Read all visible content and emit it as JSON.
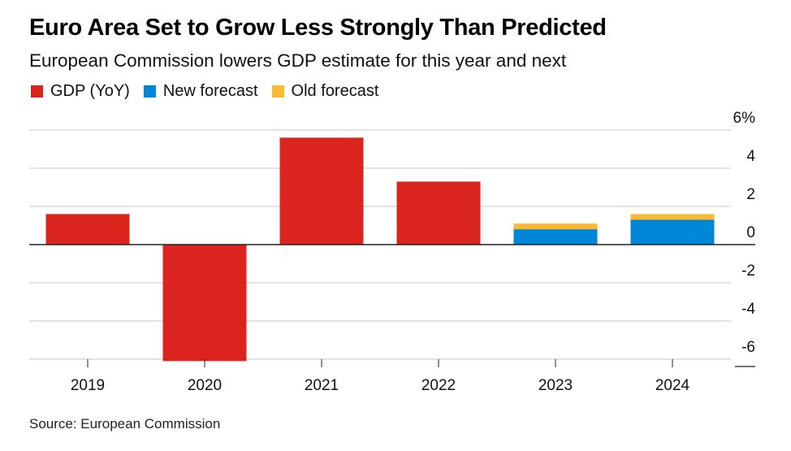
{
  "header": {
    "title": "Euro Area Set to Grow Less Strongly Than Predicted",
    "subtitle": "European Commission lowers GDP estimate for this year and next"
  },
  "legend": [
    {
      "label": "GDP (YoY)",
      "color": "#dc241f"
    },
    {
      "label": "New forecast",
      "color": "#0086d9"
    },
    {
      "label": "Old forecast",
      "color": "#fdba31"
    }
  ],
  "footer": {
    "source": "Source: European Commission"
  },
  "chart_data": {
    "type": "bar",
    "title": "Euro Area Set to Grow Less Strongly Than Predicted",
    "subtitle": "European Commission lowers GDP estimate for this year and next",
    "xlabel": "",
    "ylabel": "",
    "categories": [
      "2019",
      "2020",
      "2021",
      "2022",
      "2023",
      "2024"
    ],
    "series": [
      {
        "name": "GDP (YoY)",
        "color": "#dc241f",
        "values": [
          1.6,
          -6.1,
          5.6,
          3.3,
          null,
          null
        ]
      },
      {
        "name": "New forecast",
        "color": "#0086d9",
        "values": [
          null,
          null,
          null,
          null,
          0.8,
          1.3
        ]
      },
      {
        "name": "Old forecast",
        "color": "#fdba31",
        "values": [
          null,
          null,
          null,
          null,
          1.1,
          1.6
        ]
      }
    ],
    "ylim": [
      -6.2,
      6
    ],
    "yticks": [
      6,
      4,
      2,
      0,
      -2,
      -4,
      -6
    ],
    "ytick_labels": [
      "6%",
      "4",
      "2",
      "0",
      "-2",
      "-4",
      "-6"
    ],
    "y_axis_position": "right",
    "grid": true,
    "legend_position": "top-left",
    "source": "Source: European Commission"
  }
}
